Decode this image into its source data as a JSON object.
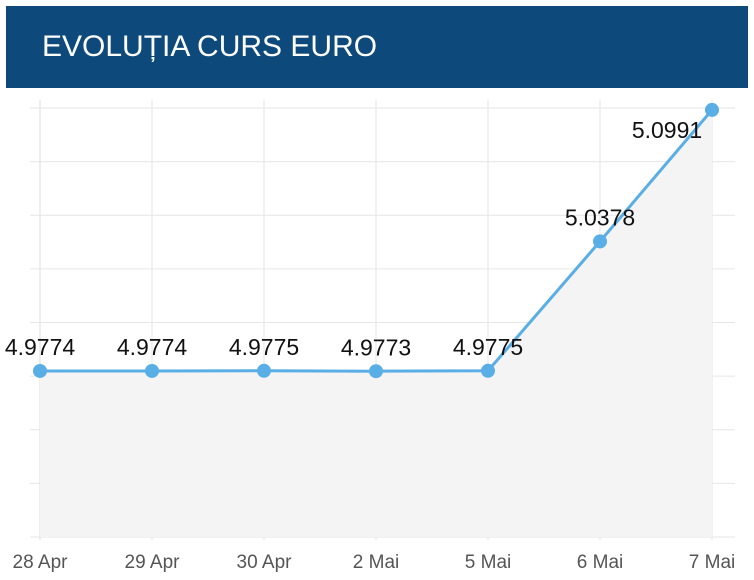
{
  "chart_data": {
    "type": "line",
    "title": "EVOLUȚIA CURS EURO",
    "categories": [
      "28 Apr",
      "29 Apr",
      "30 Apr",
      "2 Mai",
      "5 Mai",
      "6 Mai",
      "7 Mai"
    ],
    "values": [
      4.9774,
      4.9774,
      4.9775,
      4.9773,
      4.9775,
      5.0378,
      5.0991
    ],
    "color": "#5aaee6",
    "ylim": [
      4.9,
      5.1
    ]
  }
}
